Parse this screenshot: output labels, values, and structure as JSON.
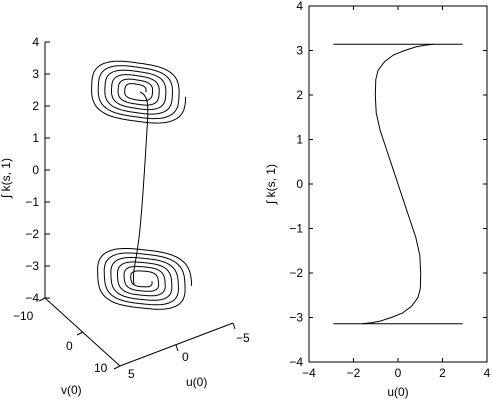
{
  "chart_data": [
    {
      "type": "line",
      "projection": "3d",
      "title": "",
      "zlabel": "∫ k(s, 1)",
      "xlabel": "u(0)",
      "ylabel": "v(0)",
      "zlim": [
        -4,
        4
      ],
      "z_ticks": [
        "4",
        "3",
        "2",
        "1",
        "0",
        "−1",
        "−2",
        "−3",
        "−4"
      ],
      "u_ticks": [
        "0",
        "−5"
      ],
      "v_ticks": [
        "−10",
        "0",
        "10"
      ],
      "corner_tick": "5",
      "series": [
        {
          "description_values": {
            "upper_spiral_center": {
              "u": 0,
              "v": 0,
              "z": 3.0
            },
            "lower_spiral_center": {
              "u": 0,
              "v": 0,
              "z": -3.0
            }
          }
        }
      ]
    },
    {
      "type": "line",
      "title": "",
      "xlabel": "u(0)",
      "ylabel": "∫ k(s, 1)",
      "xlim": [
        -4,
        4
      ],
      "ylim": [
        -4,
        4
      ],
      "x_ticks": [
        "−4",
        "−2",
        "0",
        "2",
        "4"
      ],
      "y_ticks": [
        "4",
        "3",
        "2",
        "1",
        "0",
        "−1",
        "−2",
        "−3",
        "−4"
      ],
      "series": [
        {
          "x": [
            1.6,
            1.2,
            0.8,
            0.3,
            -0.2,
            -0.6,
            -0.9,
            -1.0,
            -1.02,
            -0.98,
            -0.8,
            -0.5,
            -0.2,
            0.0,
            0.2,
            0.5,
            0.8,
            0.98,
            1.02,
            1.0,
            0.9,
            0.6,
            0.2,
            -0.3,
            -0.8,
            -1.2,
            -1.6
          ],
          "y": [
            3.14,
            3.12,
            3.08,
            3.0,
            2.9,
            2.75,
            2.55,
            2.35,
            2.0,
            1.6,
            1.2,
            0.75,
            0.3,
            0.0,
            -0.3,
            -0.75,
            -1.2,
            -1.6,
            -2.0,
            -2.35,
            -2.55,
            -2.75,
            -2.9,
            -3.0,
            -3.08,
            -3.12,
            -3.14
          ]
        },
        {
          "x": [
            -2.9,
            2.9
          ],
          "y": [
            3.14,
            3.14
          ]
        },
        {
          "x": [
            -2.9,
            2.9
          ],
          "y": [
            -3.14,
            -3.14
          ]
        }
      ]
    }
  ]
}
